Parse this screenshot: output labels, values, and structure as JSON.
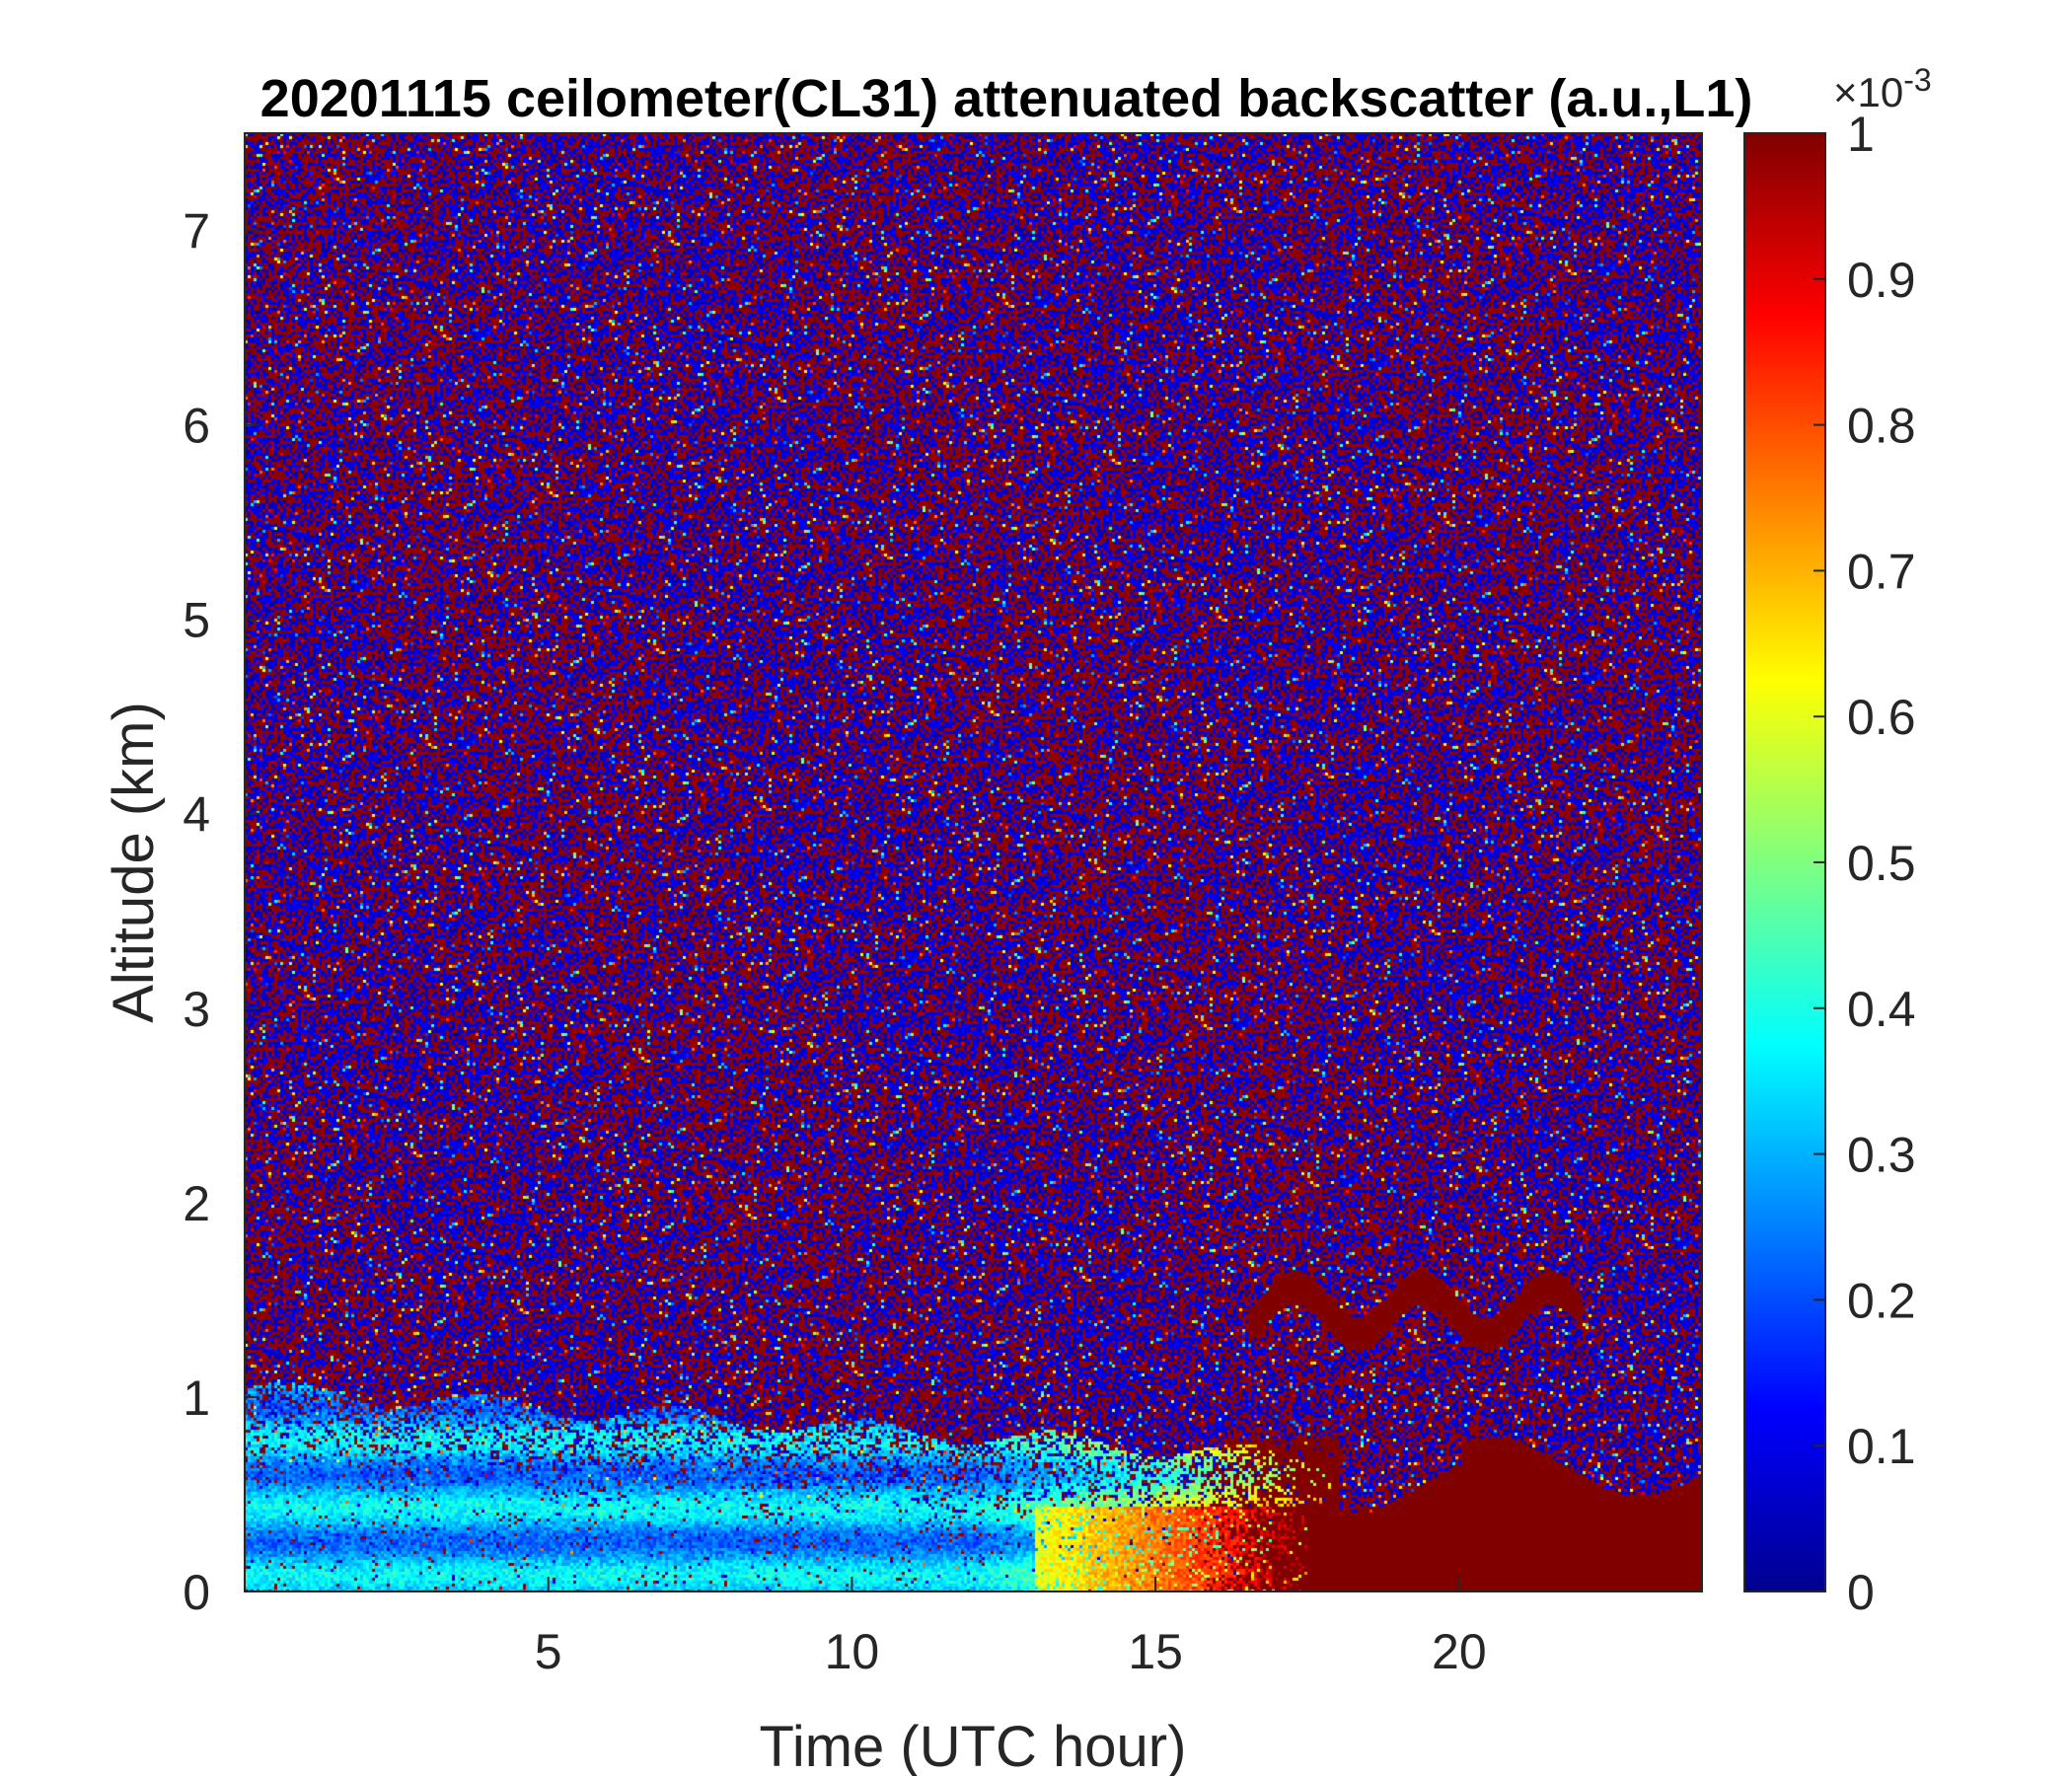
{
  "chart_data": {
    "type": "heatmap",
    "title": "20201115 ceilometer(CL31) attenuated backscatter (a.u.,L1)",
    "xlabel": "Time (UTC hour)",
    "ylabel": "Altitude (km)",
    "xlim": [
      0,
      24
    ],
    "ylim": [
      0,
      7.5
    ],
    "xticks": [
      5,
      10,
      15,
      20
    ],
    "yticks": [
      0,
      1,
      2,
      3,
      4,
      5,
      6,
      7
    ],
    "colorbar": {
      "colormap": "jet",
      "clim": [
        0,
        1
      ],
      "multiplier": "×10",
      "exponent": "-3",
      "ticks": [
        0,
        0.1,
        0.2,
        0.3,
        0.4,
        0.5,
        0.6,
        0.7,
        0.8,
        0.9,
        1
      ]
    },
    "features": [
      {
        "feature": "noisy background",
        "x_range": [
          0,
          24
        ],
        "y_range": [
          1.5,
          7.5
        ],
        "value": "mixed 0 and 1"
      },
      {
        "feature": "boundary layer aerosol",
        "x_range": [
          0,
          13
        ],
        "y_range": [
          0,
          1.0
        ],
        "value": 0.35
      },
      {
        "feature": "low-level enhancement",
        "x_range": [
          12,
          18
        ],
        "y_range": [
          0,
          0.8
        ],
        "value": 0.7
      },
      {
        "feature": "saturated low cloud/fog",
        "x_range": [
          17.5,
          24
        ],
        "y_range": [
          0,
          0.8
        ],
        "value": 1
      },
      {
        "feature": "cloud layer",
        "x_range": [
          16,
          22
        ],
        "y_range": [
          1.2,
          1.8
        ],
        "value": 1
      }
    ]
  }
}
